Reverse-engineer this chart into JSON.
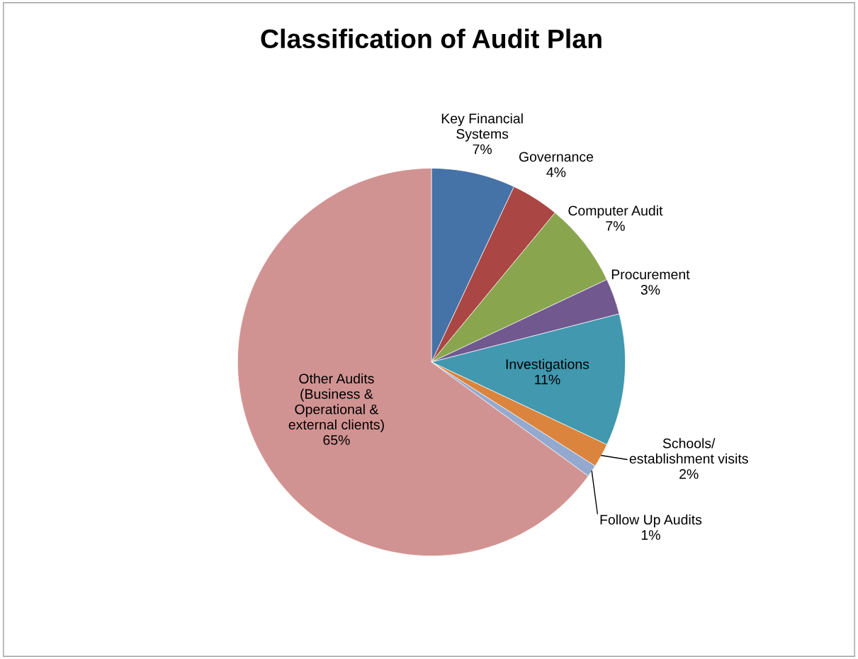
{
  "chart_data": {
    "type": "pie",
    "title": "Classification of Audit Plan",
    "categories": [
      "Key Financial\nSystems",
      "Governance",
      "Computer Audit",
      "Procurement",
      "Investigations",
      "Schools/\nestablishment visits",
      "Follow Up Audits",
      "Other Audits\n(Business &\nOperational &\nexternal clients)"
    ],
    "values": [
      7,
      4,
      7,
      3,
      11,
      2,
      1,
      65
    ],
    "colors": [
      "#4572a7",
      "#aa4643",
      "#89a54e",
      "#71588f",
      "#4198af",
      "#db843d",
      "#93a9cf",
      "#d19392"
    ],
    "value_labels": [
      "7%",
      "4%",
      "7%",
      "3%",
      "11%",
      "2%",
      "1%",
      "65%"
    ],
    "legend": false
  }
}
